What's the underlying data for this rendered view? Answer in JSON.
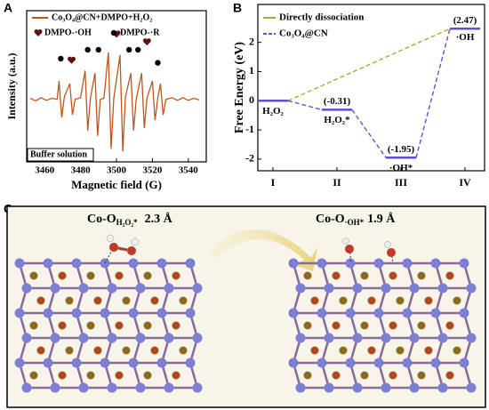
{
  "chart_data": [
    {
      "type": "line",
      "panel": "A",
      "xlabel": "Magnetic field (G)",
      "ylabel": "Intensity (a.u.)",
      "xlim": [
        3450,
        3550
      ],
      "xticks": [
        3460,
        3480,
        3500,
        3520,
        3540
      ],
      "ylim": [
        -1.2,
        1.7
      ],
      "annotation": "Buffer solution",
      "series": [
        {
          "name": "Co₃O₄@CN+DMPO+H₂O₂",
          "color": "#c0561e",
          "x": [
            3452,
            3455,
            3458,
            3461,
            3464,
            3467,
            3468,
            3469.5,
            3471,
            3474,
            3475.5,
            3477,
            3480,
            3482.5,
            3484,
            3485.5,
            3488,
            3489.5,
            3491,
            3493,
            3495.5,
            3497,
            3498.5,
            3502,
            3503.5,
            3505,
            3508,
            3509.5,
            3511,
            3514,
            3515.5,
            3517,
            3520,
            3521.5,
            3523,
            3524.5,
            3526,
            3527.5,
            3531,
            3534,
            3537,
            3540,
            3543,
            3546
          ],
          "values": [
            0.02,
            -0.03,
            0.03,
            -0.02,
            0.02,
            0,
            0.35,
            -0.35,
            0.05,
            0.3,
            -0.3,
            0,
            0.03,
            0.55,
            -0.6,
            0.02,
            0.5,
            -0.7,
            0,
            0.02,
            0.9,
            -0.95,
            0.02,
            0.85,
            -1.0,
            0.05,
            0.5,
            -0.6,
            0,
            0.5,
            -0.55,
            0.02,
            0.35,
            -0.4,
            0.03,
            0.3,
            -0.3,
            0,
            0.03,
            -0.02,
            0.03,
            -0.02,
            0.02,
            -0.01
          ]
        },
        {
          "name": "DMPO-·OH",
          "marker": "heart",
          "color": "#5a1414",
          "x": [
            3475,
            3500,
            3517
          ],
          "values": [
            0.75,
            1.25,
            1.1
          ]
        },
        {
          "name": "DMPO-·R",
          "marker": "dot",
          "color": "#000000",
          "x": [
            3469,
            3484,
            3490,
            3507,
            3512,
            3523
          ],
          "values": [
            0.78,
            0.95,
            0.95,
            0.95,
            0.95,
            0.7
          ]
        }
      ]
    },
    {
      "type": "energy",
      "panel": "B",
      "ylabel": "Free Energy (eV)",
      "categories": [
        "I",
        "II",
        "III",
        "IV"
      ],
      "ylim": [
        -2.4,
        3.3
      ],
      "yticks": [
        -2,
        -1,
        0,
        1,
        2
      ],
      "species": [
        "H₂O₂",
        "H₂O₂*",
        "·OH*",
        "·OH"
      ],
      "series": [
        {
          "name": "Directly dissociation",
          "color": "#b5a53a",
          "values": [
            0,
            null,
            null,
            2.47
          ]
        },
        {
          "name": "Co₃O₄@CN",
          "color": "#6a4cc9",
          "values": [
            0,
            -0.31,
            -1.95,
            2.47
          ],
          "value_labels": [
            null,
            "(-0.31)",
            "(-1.95)",
            "(2.47)"
          ]
        }
      ]
    }
  ],
  "panel_c": {
    "panel": "C",
    "left": {
      "main": "Co-O",
      "sub": "H₂O₂*",
      "dist": "2.3 Å"
    },
    "right": {
      "main": "Co-O",
      "sub": "·OH*",
      "dist": "1.9 Å"
    }
  }
}
